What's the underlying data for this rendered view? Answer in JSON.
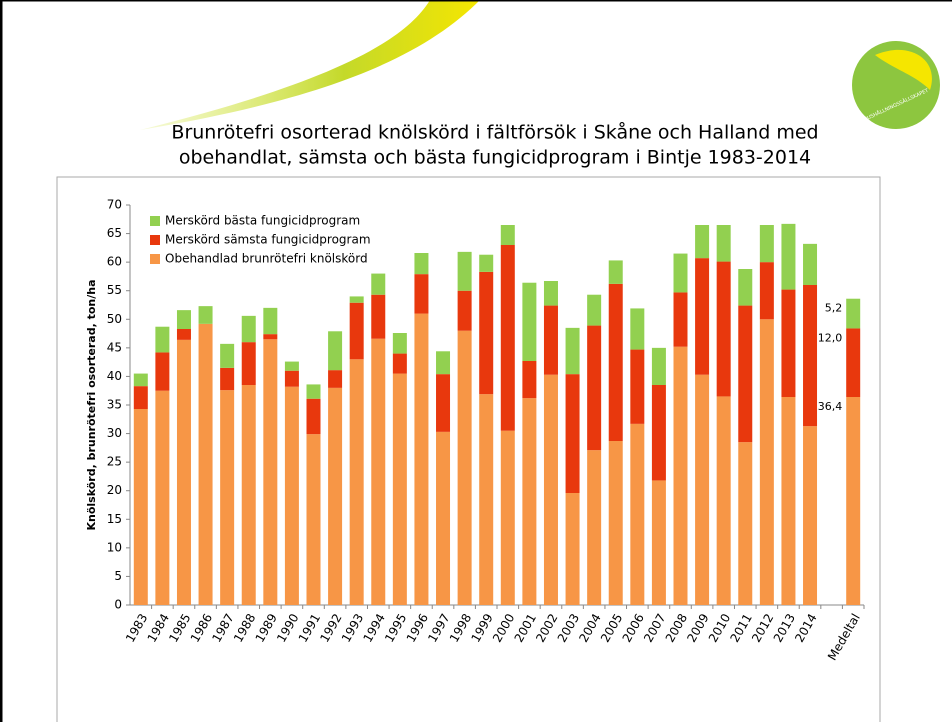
{
  "logo_text": "HUSHÅLLNINGSSÄLLSKAPET",
  "chart_data": {
    "type": "stacked_bar",
    "title": [
      "Brunrötefri osorterad knölskörd i fältförsök i Skåne och Halland med",
      "obehandlat, sämsta och bästa fungicidprogram i Bintje 1983-2014"
    ],
    "y_label": "Knölskörd, brunrötefri osorterad, ton/ha",
    "categories": [
      "1983",
      "1984",
      "1985",
      "1986",
      "1987",
      "1988",
      "1989",
      "1990",
      "1991",
      "1992",
      "1993",
      "1994",
      "1995",
      "1996",
      "1997",
      "1998",
      "1999",
      "2000",
      "2001",
      "2002",
      "2003",
      "2004",
      "2005",
      "2006",
      "2007",
      "2008",
      "2009",
      "2010",
      "2011",
      "2012",
      "2013",
      "2014",
      null,
      "Medeltal"
    ],
    "series": [
      {
        "name": "Obehandlad brunrötefri knölskörd",
        "color": "#f79646",
        "values": [
          34.3,
          37.5,
          46.4,
          49.2,
          37.6,
          38.5,
          46.5,
          38.2,
          29.9,
          38.0,
          43.0,
          46.6,
          40.5,
          51.0,
          30.3,
          48.0,
          36.9,
          30.5,
          36.2,
          40.3,
          19.6,
          27.1,
          28.7,
          31.7,
          21.8,
          45.2,
          40.3,
          36.5,
          28.5,
          50.0,
          36.4,
          31.3,
          null,
          36.4
        ],
        "value_labels": [
          null,
          null,
          null,
          null,
          null,
          null,
          null,
          null,
          null,
          null,
          null,
          null,
          null,
          null,
          null,
          null,
          null,
          null,
          null,
          null,
          null,
          null,
          null,
          null,
          null,
          null,
          null,
          null,
          null,
          null,
          null,
          null,
          null,
          "36,4"
        ]
      },
      {
        "name": "Merskörd sämsta fungicidprogram",
        "color": "#e8380d",
        "values": [
          4.0,
          6.7,
          1.9,
          0,
          3.9,
          7.5,
          0.9,
          2.8,
          6.2,
          3.1,
          9.9,
          7.7,
          3.5,
          6.9,
          10.1,
          7.0,
          21.4,
          32.5,
          6.5,
          12.1,
          20.8,
          21.8,
          27.5,
          13.0,
          16.7,
          9.5,
          20.4,
          23.6,
          23.9,
          10.0,
          18.8,
          24.7,
          null,
          12.0
        ],
        "value_labels": [
          null,
          null,
          null,
          null,
          null,
          null,
          null,
          null,
          null,
          null,
          null,
          null,
          null,
          null,
          null,
          null,
          null,
          null,
          null,
          null,
          null,
          null,
          null,
          null,
          null,
          null,
          null,
          null,
          null,
          null,
          null,
          null,
          null,
          "12,0"
        ]
      },
      {
        "name": "Merskörd bästa fungicidprogram",
        "color": "#92d050",
        "values": [
          2.2,
          4.5,
          3.3,
          3.1,
          4.2,
          4.6,
          4.6,
          1.6,
          2.5,
          6.8,
          1.1,
          3.7,
          3.6,
          3.7,
          4.0,
          6.8,
          3.0,
          3.5,
          13.7,
          4.3,
          8.1,
          5.4,
          4.1,
          7.2,
          6.5,
          6.8,
          5.8,
          6.4,
          6.4,
          6.5,
          11.5,
          7.2,
          null,
          5.2
        ],
        "value_labels": [
          null,
          null,
          null,
          null,
          null,
          null,
          null,
          null,
          null,
          null,
          null,
          null,
          null,
          null,
          null,
          null,
          null,
          null,
          null,
          null,
          null,
          null,
          null,
          null,
          null,
          null,
          null,
          null,
          null,
          null,
          null,
          null,
          null,
          "5,2"
        ]
      }
    ],
    "ylim": [
      0,
      70
    ],
    "yticks": [
      0,
      5,
      10,
      15,
      20,
      25,
      30,
      35,
      40,
      45,
      50,
      55,
      60,
      65,
      70
    ],
    "grid": false,
    "legend": "top-left"
  }
}
